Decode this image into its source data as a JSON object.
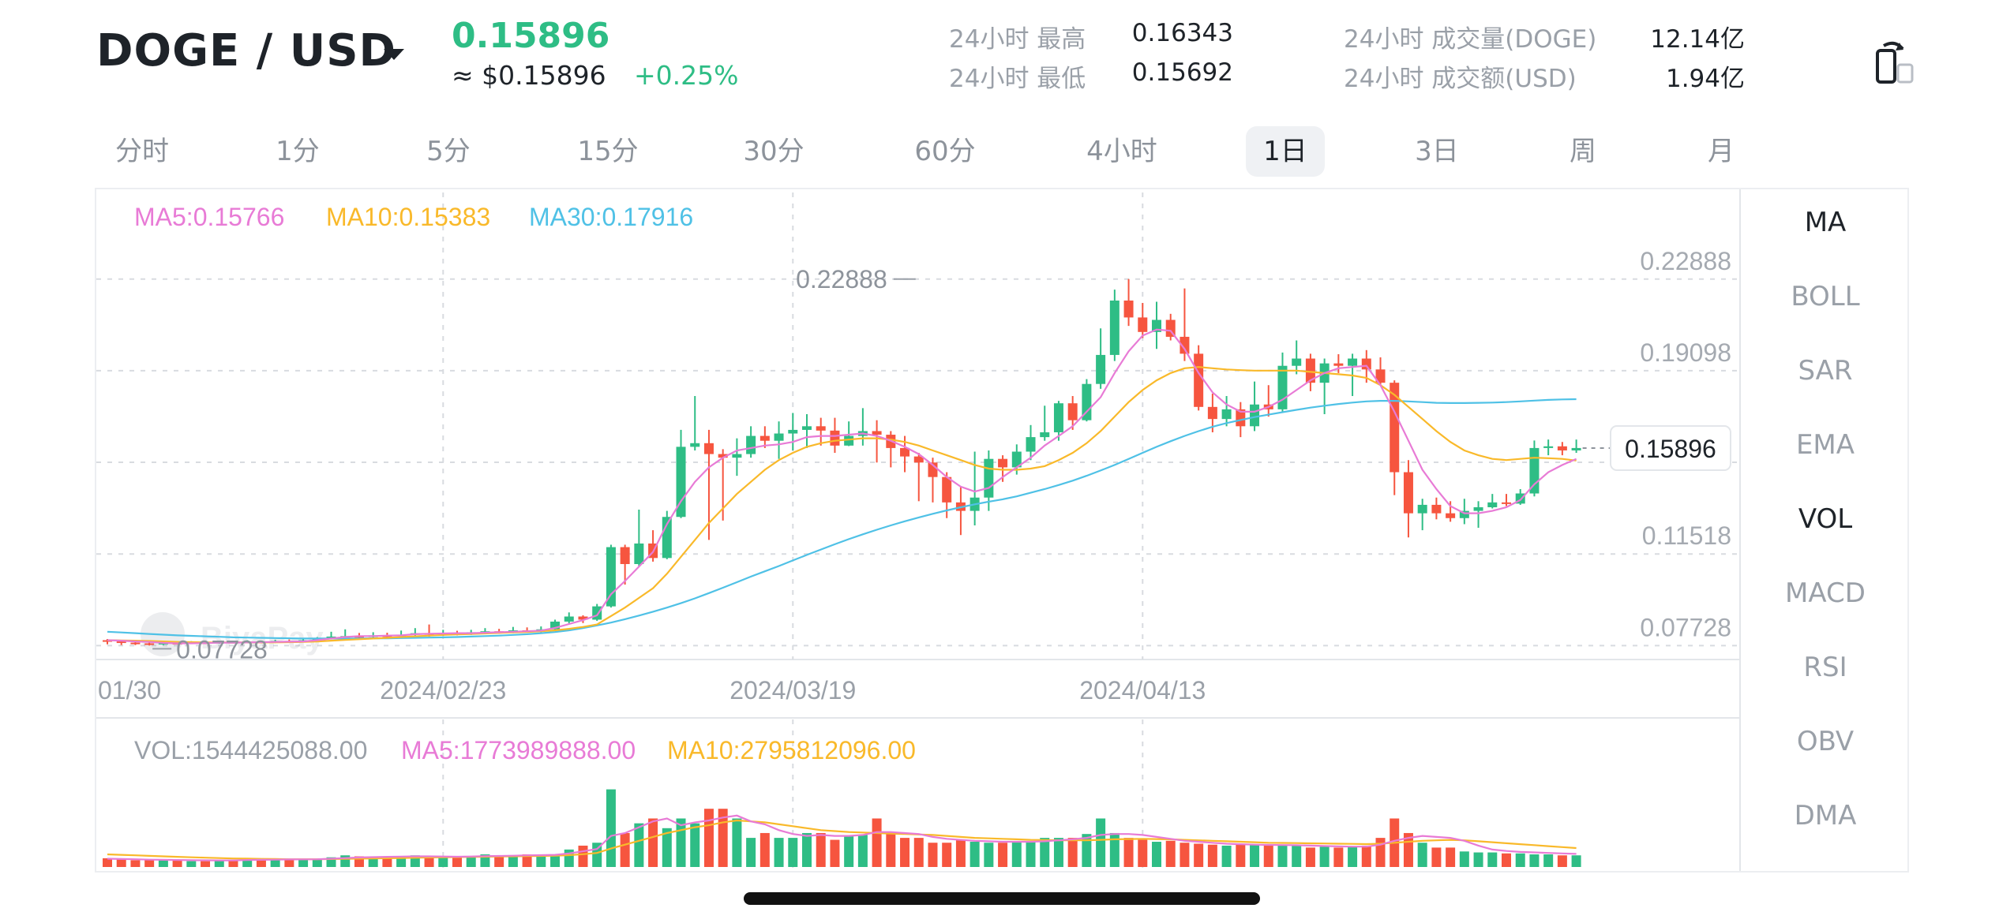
{
  "header": {
    "pair": "DOGE / USD",
    "last_price": "0.15896",
    "usd_price": "≈ $0.15896",
    "change_pct": "+0.25%",
    "stats": {
      "high_label": "24小时 最高",
      "high_value": "0.16343",
      "low_label": "24小时 最低",
      "low_value": "0.15692",
      "vol_label": "24小时 成交量(DOGE)",
      "vol_value": "12.14亿",
      "amount_label": "24小时 成交额(USD)",
      "amount_value": "1.94亿"
    },
    "rotate_icon": "rotate-screen-icon"
  },
  "timeframes": [
    "分时",
    "1分",
    "5分",
    "15分",
    "30分",
    "60分",
    "4小时",
    "1日",
    "3日",
    "周",
    "月"
  ],
  "active_timeframe": "1日",
  "indicators": [
    "MA",
    "BOLL",
    "SAR",
    "EMA",
    "VOL",
    "MACD",
    "RSI",
    "OBV",
    "DMA"
  ],
  "active_indicators": [
    "MA",
    "VOL"
  ],
  "legend": {
    "ma5": "MA5:0.15766",
    "ma10": "MA10:0.15383",
    "ma30": "MA30:0.17916",
    "vol": "VOL:1544425088.00",
    "vol_ma5": "MA5:1773989888.00",
    "vol_ma10": "MA10:2795812096.00"
  },
  "watermark": "BiyaPay",
  "colors": {
    "up": "#2ebd85",
    "down": "#f6553f",
    "ma5": "#e87bd6",
    "ma10": "#f9b92a",
    "ma30": "#4fc1e6",
    "grid": "#d8dbe0",
    "axis_text": "#a5aab1"
  },
  "chart_data": {
    "type": "candlestick",
    "price_axis_labels": [
      "0.22888",
      "0.19098",
      "0.11518",
      "0.07728"
    ],
    "price_ticks": [
      0.22888,
      0.19098,
      0.15308,
      0.11518,
      0.07728
    ],
    "price_range": [
      0.0738,
      0.2288
    ],
    "date_labels": [
      "01/30",
      "2024/02/23",
      "2024/03/19",
      "2024/04/13"
    ],
    "date_label_index": [
      0,
      24,
      49,
      74
    ],
    "current_price_label": "0.15896",
    "current_price": 0.15896,
    "max_label": "0.22888",
    "max_index": 58,
    "min_label": "0.07728",
    "min_index": 3,
    "candles": [
      [
        0.0795,
        0.079,
        0.08,
        0.0778
      ],
      [
        0.079,
        0.0785,
        0.0795,
        0.0775
      ],
      [
        0.0785,
        0.0782,
        0.079,
        0.0775
      ],
      [
        0.0782,
        0.0778,
        0.0786,
        0.0773
      ],
      [
        0.0778,
        0.0784,
        0.0788,
        0.0775
      ],
      [
        0.0784,
        0.0782,
        0.0789,
        0.0778
      ],
      [
        0.0782,
        0.0786,
        0.0791,
        0.0779
      ],
      [
        0.0786,
        0.0783,
        0.079,
        0.078
      ],
      [
        0.0783,
        0.0788,
        0.0793,
        0.078
      ],
      [
        0.0788,
        0.0785,
        0.0792,
        0.0782
      ],
      [
        0.0785,
        0.0789,
        0.0795,
        0.0782
      ],
      [
        0.0789,
        0.0786,
        0.0793,
        0.0783
      ],
      [
        0.0786,
        0.0792,
        0.0797,
        0.0783
      ],
      [
        0.0792,
        0.079,
        0.0798,
        0.0786
      ],
      [
        0.079,
        0.0795,
        0.08,
        0.0787
      ],
      [
        0.0795,
        0.0803,
        0.0808,
        0.0792
      ],
      [
        0.0803,
        0.081,
        0.083,
        0.0798
      ],
      [
        0.081,
        0.0812,
        0.084,
        0.0802
      ],
      [
        0.0812,
        0.0808,
        0.0825,
        0.08
      ],
      [
        0.0808,
        0.0815,
        0.0828,
        0.0804
      ],
      [
        0.0815,
        0.0813,
        0.0826,
        0.0806
      ],
      [
        0.0813,
        0.0818,
        0.0835,
        0.0808
      ],
      [
        0.0818,
        0.0824,
        0.0845,
        0.0812
      ],
      [
        0.0824,
        0.082,
        0.086,
        0.081
      ],
      [
        0.082,
        0.0826,
        0.0838,
        0.0813
      ],
      [
        0.0826,
        0.0823,
        0.0834,
        0.0815
      ],
      [
        0.0823,
        0.0828,
        0.0838,
        0.0817
      ],
      [
        0.0828,
        0.0832,
        0.0845,
        0.082
      ],
      [
        0.0832,
        0.083,
        0.0842,
        0.0822
      ],
      [
        0.083,
        0.0836,
        0.085,
        0.0824
      ],
      [
        0.0836,
        0.0832,
        0.0848,
        0.0826
      ],
      [
        0.0832,
        0.084,
        0.0852,
        0.0828
      ],
      [
        0.084,
        0.0872,
        0.088,
        0.0835
      ],
      [
        0.0872,
        0.0893,
        0.091,
        0.0865
      ],
      [
        0.0893,
        0.088,
        0.0898,
        0.0866
      ],
      [
        0.088,
        0.0935,
        0.0945,
        0.0875
      ],
      [
        0.0935,
        0.118,
        0.119,
        0.093
      ],
      [
        0.118,
        0.111,
        0.119,
        0.1025
      ],
      [
        0.111,
        0.1195,
        0.1335,
        0.11
      ],
      [
        0.1195,
        0.1135,
        0.125,
        0.112
      ],
      [
        0.1135,
        0.1305,
        0.133,
        0.113
      ],
      [
        0.1305,
        0.1595,
        0.1665,
        0.13
      ],
      [
        0.1595,
        0.161,
        0.1805,
        0.158
      ],
      [
        0.161,
        0.1565,
        0.1665,
        0.121
      ],
      [
        0.1565,
        0.155,
        0.1585,
        0.129
      ],
      [
        0.155,
        0.1565,
        0.163,
        0.1475
      ],
      [
        0.1565,
        0.164,
        0.168,
        0.155
      ],
      [
        0.164,
        0.162,
        0.168,
        0.159
      ],
      [
        0.162,
        0.165,
        0.17,
        0.1545
      ],
      [
        0.165,
        0.1665,
        0.1735,
        0.158
      ],
      [
        0.1665,
        0.168,
        0.173,
        0.159
      ],
      [
        0.168,
        0.1662,
        0.1715,
        0.16
      ],
      [
        0.1662,
        0.16,
        0.1715,
        0.157
      ],
      [
        0.16,
        0.164,
        0.17,
        0.1598
      ],
      [
        0.164,
        0.166,
        0.1755,
        0.16
      ],
      [
        0.166,
        0.1645,
        0.1705,
        0.153
      ],
      [
        0.1645,
        0.159,
        0.166,
        0.151
      ],
      [
        0.159,
        0.1555,
        0.164,
        0.149
      ],
      [
        0.1555,
        0.153,
        0.157,
        0.137
      ],
      [
        0.153,
        0.147,
        0.155,
        0.1365
      ],
      [
        0.147,
        0.1365,
        0.149,
        0.13
      ],
      [
        0.1365,
        0.133,
        0.143,
        0.123
      ],
      [
        0.133,
        0.1385,
        0.1575,
        0.127
      ],
      [
        0.1385,
        0.1545,
        0.158,
        0.133
      ],
      [
        0.1545,
        0.151,
        0.156,
        0.145
      ],
      [
        0.151,
        0.1575,
        0.1605,
        0.148
      ],
      [
        0.1575,
        0.1635,
        0.1685,
        0.154
      ],
      [
        0.1635,
        0.1655,
        0.1765,
        0.162
      ],
      [
        0.1655,
        0.1775,
        0.1785,
        0.162
      ],
      [
        0.1775,
        0.1705,
        0.1805,
        0.1665
      ],
      [
        0.1705,
        0.1855,
        0.1875,
        0.17
      ],
      [
        0.1855,
        0.1975,
        0.2085,
        0.1835
      ],
      [
        0.1975,
        0.22,
        0.2245,
        0.195
      ],
      [
        0.22,
        0.213,
        0.2289,
        0.2095
      ],
      [
        0.213,
        0.207,
        0.219,
        0.2045
      ],
      [
        0.207,
        0.212,
        0.2195,
        0.2
      ],
      [
        0.212,
        0.205,
        0.2145,
        0.2035
      ],
      [
        0.205,
        0.198,
        0.225,
        0.195
      ],
      [
        0.198,
        0.176,
        0.2015,
        0.1745
      ],
      [
        0.176,
        0.171,
        0.1815,
        0.1655
      ],
      [
        0.171,
        0.175,
        0.1805,
        0.168
      ],
      [
        0.175,
        0.168,
        0.178,
        0.1635
      ],
      [
        0.168,
        0.177,
        0.1865,
        0.166
      ],
      [
        0.177,
        0.175,
        0.185,
        0.172
      ],
      [
        0.175,
        0.193,
        0.1985,
        0.174
      ],
      [
        0.193,
        0.196,
        0.2035,
        0.1895
      ],
      [
        0.196,
        0.186,
        0.198,
        0.1825
      ],
      [
        0.186,
        0.194,
        0.196,
        0.173
      ],
      [
        0.194,
        0.193,
        0.1978,
        0.19
      ],
      [
        0.193,
        0.196,
        0.198,
        0.1805
      ],
      [
        0.196,
        0.1915,
        0.1995,
        0.186
      ],
      [
        0.1915,
        0.186,
        0.1965,
        0.185
      ],
      [
        0.186,
        0.149,
        0.187,
        0.1395
      ],
      [
        0.149,
        0.132,
        0.154,
        0.122
      ],
      [
        0.132,
        0.1355,
        0.138,
        0.125
      ],
      [
        0.1355,
        0.132,
        0.1385,
        0.1295
      ],
      [
        0.132,
        0.13,
        0.137,
        0.1285
      ],
      [
        0.13,
        0.133,
        0.138,
        0.1275
      ],
      [
        0.133,
        0.1345,
        0.137,
        0.126
      ],
      [
        0.1345,
        0.1365,
        0.14,
        0.134
      ],
      [
        0.1365,
        0.136,
        0.14,
        0.135
      ],
      [
        0.136,
        0.1402,
        0.142,
        0.1355
      ],
      [
        0.1402,
        0.159,
        0.1621,
        0.139
      ],
      [
        0.159,
        0.1597,
        0.1625,
        0.156
      ],
      [
        0.1597,
        0.158,
        0.1615,
        0.156
      ],
      [
        0.158,
        0.159,
        0.1625,
        0.157
      ]
    ],
    "ma5": [
      0.0795,
      0.0793,
      0.079,
      0.0788,
      0.0784,
      0.0782,
      0.0782,
      0.0783,
      0.0785,
      0.0785,
      0.0786,
      0.0787,
      0.0788,
      0.0789,
      0.079,
      0.0795,
      0.0802,
      0.0808,
      0.0812,
      0.0812,
      0.0814,
      0.0815,
      0.082,
      0.0822,
      0.0823,
      0.0824,
      0.0824,
      0.0826,
      0.0828,
      0.083,
      0.0832,
      0.0835,
      0.0846,
      0.0862,
      0.0878,
      0.0898,
      0.0985,
      0.104,
      0.11,
      0.116,
      0.1275,
      0.137,
      0.145,
      0.151,
      0.155,
      0.158,
      0.159,
      0.16,
      0.1605,
      0.1615,
      0.1635,
      0.164,
      0.164,
      0.1645,
      0.165,
      0.164,
      0.162,
      0.1595,
      0.1565,
      0.152,
      0.147,
      0.143,
      0.141,
      0.1425,
      0.147,
      0.151,
      0.155,
      0.16,
      0.164,
      0.168,
      0.174,
      0.18,
      0.19,
      0.199,
      0.2055,
      0.208,
      0.2075,
      0.2,
      0.19,
      0.182,
      0.177,
      0.174,
      0.174,
      0.176,
      0.179,
      0.183,
      0.187,
      0.19,
      0.192,
      0.1925,
      0.193,
      0.185,
      0.174,
      0.162,
      0.15,
      0.142,
      0.135,
      0.132,
      0.132,
      0.133,
      0.1345,
      0.1375,
      0.144,
      0.149,
      0.152,
      0.1545
    ],
    "ma10": [
      0.0795,
      0.0794,
      0.0793,
      0.0792,
      0.079,
      0.0788,
      0.0787,
      0.0786,
      0.0786,
      0.0786,
      0.0786,
      0.0786,
      0.0786,
      0.0787,
      0.0788,
      0.079,
      0.0793,
      0.0796,
      0.0799,
      0.0802,
      0.0805,
      0.0808,
      0.0811,
      0.0814,
      0.0817,
      0.0819,
      0.0821,
      0.0823,
      0.0825,
      0.0827,
      0.0829,
      0.0832,
      0.0836,
      0.0842,
      0.085,
      0.086,
      0.0895,
      0.093,
      0.097,
      0.101,
      0.107,
      0.114,
      0.121,
      0.128,
      0.134,
      0.14,
      0.145,
      0.15,
      0.154,
      0.157,
      0.1595,
      0.161,
      0.162,
      0.1625,
      0.163,
      0.163,
      0.1625,
      0.1615,
      0.16,
      0.158,
      0.156,
      0.154,
      0.152,
      0.1505,
      0.15,
      0.15,
      0.1505,
      0.1515,
      0.154,
      0.157,
      0.161,
      0.166,
      0.172,
      0.178,
      0.183,
      0.187,
      0.19,
      0.192,
      0.1925,
      0.192,
      0.1915,
      0.1912,
      0.191,
      0.191,
      0.191,
      0.191,
      0.1905,
      0.19,
      0.1895,
      0.189,
      0.188,
      0.185,
      0.181,
      0.176,
      0.171,
      0.166,
      0.1615,
      0.158,
      0.156,
      0.1545,
      0.154,
      0.1545,
      0.155,
      0.1548,
      0.1545,
      0.1538
    ],
    "ma30": [
      0.083,
      0.0827,
      0.0824,
      0.0821,
      0.0818,
      0.0815,
      0.0813,
      0.0811,
      0.0809,
      0.0807,
      0.0806,
      0.0805,
      0.0804,
      0.0803,
      0.0802,
      0.0802,
      0.0802,
      0.0802,
      0.0802,
      0.0803,
      0.0803,
      0.0804,
      0.0805,
      0.0806,
      0.0807,
      0.0808,
      0.081,
      0.0812,
      0.0814,
      0.0817,
      0.082,
      0.0824,
      0.0829,
      0.0836,
      0.0845,
      0.0856,
      0.0868,
      0.0882,
      0.0897,
      0.0913,
      0.093,
      0.0948,
      0.0968,
      0.099,
      0.1012,
      0.1035,
      0.1058,
      0.108,
      0.1102,
      0.1125,
      0.1148,
      0.117,
      0.1192,
      0.1213,
      0.1233,
      0.1252,
      0.127,
      0.1287,
      0.1303,
      0.1318,
      0.1332,
      0.1345,
      0.1357,
      0.1368,
      0.1378,
      0.139,
      0.1405,
      0.142,
      0.1437,
      0.1455,
      0.1475,
      0.1497,
      0.152,
      0.1545,
      0.157,
      0.1595,
      0.1618,
      0.164,
      0.166,
      0.1678,
      0.1693,
      0.1706,
      0.1718,
      0.1728,
      0.1738,
      0.1748,
      0.1757,
      0.1765,
      0.1772,
      0.1778,
      0.1783,
      0.1785,
      0.1785,
      0.1783,
      0.178,
      0.1777,
      0.1776,
      0.1776,
      0.1777,
      0.1778,
      0.178,
      0.1783,
      0.1786,
      0.1789,
      0.1791,
      0.1792
    ],
    "volume_range": [
      0,
      10
    ],
    "volumes": [
      0.9,
      0.8,
      0.7,
      0.7,
      0.7,
      0.7,
      0.6,
      0.6,
      0.7,
      0.7,
      0.8,
      0.8,
      0.8,
      0.7,
      0.8,
      0.8,
      1.0,
      1.2,
      1.1,
      1.0,
      1.0,
      1.1,
      1.2,
      1.1,
      1.0,
      1.0,
      1.1,
      1.3,
      1.2,
      1.2,
      1.3,
      1.2,
      1.3,
      1.8,
      2.2,
      2.5,
      8.0,
      3.5,
      4.5,
      5.0,
      4.0,
      5.0,
      4.5,
      6.0,
      6.0,
      5.0,
      3.0,
      3.5,
      3.0,
      3.0,
      3.5,
      3.5,
      2.8,
      3.2,
      3.3,
      5.0,
      3.5,
      3.0,
      3.0,
      2.5,
      2.5,
      2.8,
      2.6,
      2.5,
      2.5,
      2.6,
      2.6,
      3.0,
      3.0,
      3.0,
      3.4,
      5.0,
      3.5,
      3.0,
      2.8,
      2.6,
      2.7,
      2.5,
      2.4,
      2.3,
      2.2,
      2.3,
      2.3,
      2.2,
      2.2,
      2.3,
      2.0,
      2.1,
      2.0,
      2.1,
      2.2,
      3.0,
      5.0,
      3.5,
      2.5,
      2.0,
      2.0,
      1.6,
      1.5,
      1.5,
      1.4,
      1.4,
      1.3,
      1.3,
      1.2,
      1.2
    ],
    "vol_ma5": [
      0.85,
      0.82,
      0.8,
      0.76,
      0.74,
      0.72,
      0.7,
      0.69,
      0.68,
      0.68,
      0.72,
      0.74,
      0.76,
      0.78,
      0.79,
      0.8,
      0.85,
      0.92,
      0.98,
      1.02,
      1.05,
      1.07,
      1.1,
      1.1,
      1.08,
      1.06,
      1.08,
      1.12,
      1.14,
      1.16,
      1.2,
      1.22,
      1.25,
      1.4,
      1.62,
      1.85,
      3.2,
      3.5,
      4.1,
      4.7,
      5.0,
      4.3,
      4.6,
      4.8,
      5.1,
      5.3,
      4.7,
      4.4,
      3.8,
      3.4,
      3.2,
      3.3,
      3.2,
      3.2,
      3.3,
      3.6,
      3.6,
      3.5,
      3.4,
      3.1,
      2.9,
      2.8,
      2.7,
      2.65,
      2.6,
      2.6,
      2.6,
      2.65,
      2.75,
      2.85,
      3.0,
      3.3,
      3.4,
      3.4,
      3.3,
      3.1,
      2.9,
      2.7,
      2.6,
      2.5,
      2.4,
      2.35,
      2.3,
      2.28,
      2.26,
      2.24,
      2.2,
      2.16,
      2.12,
      2.1,
      2.1,
      2.3,
      2.7,
      3.0,
      3.2,
      3.1,
      3.0,
      2.7,
      2.2,
      1.8,
      1.65,
      1.55,
      1.5,
      1.45,
      1.4,
      1.35
    ],
    "vol_ma10": [
      1.3,
      1.25,
      1.2,
      1.15,
      1.1,
      1.05,
      1.0,
      0.96,
      0.92,
      0.88,
      0.86,
      0.84,
      0.82,
      0.8,
      0.8,
      0.8,
      0.82,
      0.84,
      0.86,
      0.88,
      0.9,
      0.92,
      0.95,
      0.98,
      1.0,
      1.02,
      1.04,
      1.06,
      1.08,
      1.1,
      1.12,
      1.14,
      1.16,
      1.22,
      1.32,
      1.45,
      1.9,
      2.3,
      2.7,
      3.1,
      3.5,
      3.8,
      4.1,
      4.3,
      4.6,
      4.8,
      4.7,
      4.6,
      4.4,
      4.2,
      4.0,
      3.8,
      3.7,
      3.6,
      3.55,
      3.5,
      3.45,
      3.4,
      3.35,
      3.3,
      3.2,
      3.1,
      3.0,
      2.95,
      2.9,
      2.85,
      2.8,
      2.78,
      2.76,
      2.75,
      2.76,
      2.8,
      2.85,
      2.88,
      2.9,
      2.88,
      2.85,
      2.8,
      2.75,
      2.7,
      2.65,
      2.6,
      2.55,
      2.5,
      2.48,
      2.46,
      2.44,
      2.42,
      2.4,
      2.38,
      2.36,
      2.4,
      2.5,
      2.6,
      2.7,
      2.75,
      2.8,
      2.75,
      2.65,
      2.55,
      2.45,
      2.35,
      2.25,
      2.15,
      2.05,
      1.95
    ]
  }
}
